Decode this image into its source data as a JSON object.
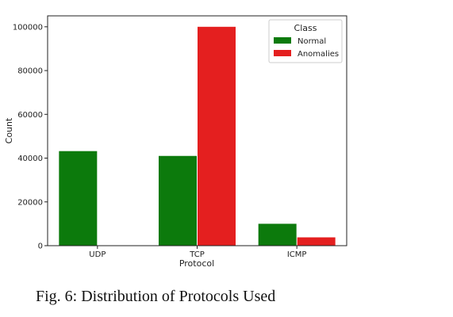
{
  "caption": "Fig. 6: Distribution of Protocols Used",
  "chart_data": {
    "type": "bar",
    "categories": [
      "UDP",
      "TCP",
      "ICMP"
    ],
    "xlabel": "Protocol",
    "ylabel": "Count",
    "ylim": [
      0,
      105000
    ],
    "yticks": [
      0,
      20000,
      40000,
      60000,
      80000,
      100000
    ],
    "grid": false,
    "legend": {
      "title": "Class",
      "placement": "top-right"
    },
    "series": [
      {
        "name": "Normal",
        "color": "#0c7a0c",
        "values": [
          43200,
          41000,
          10000
        ]
      },
      {
        "name": "Anomalies",
        "color": "#e41f1f",
        "values": [
          0,
          100000,
          3800
        ]
      }
    ]
  }
}
